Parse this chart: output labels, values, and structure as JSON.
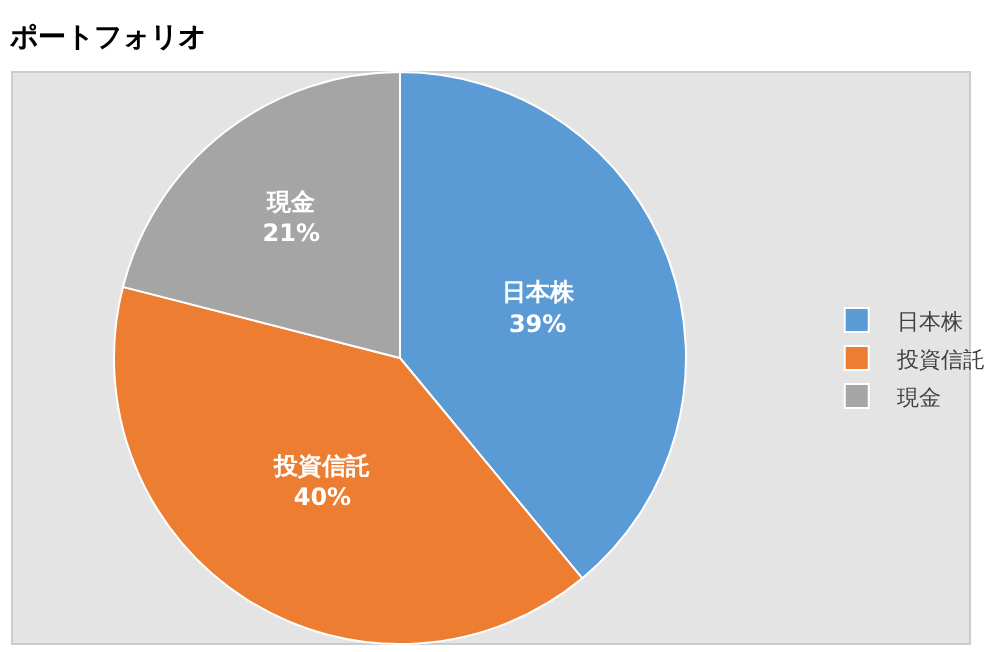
{
  "chart_data": {
    "type": "pie",
    "title": "ポートフォリオ",
    "categories": [
      "日本株",
      "投資信託",
      "現金"
    ],
    "values": [
      39,
      40,
      21
    ],
    "value_labels": [
      "39%",
      "40%",
      "21%"
    ],
    "colors": [
      "#5b9bd5",
      "#ed7d31",
      "#a5a5a5"
    ],
    "legend": "right"
  }
}
